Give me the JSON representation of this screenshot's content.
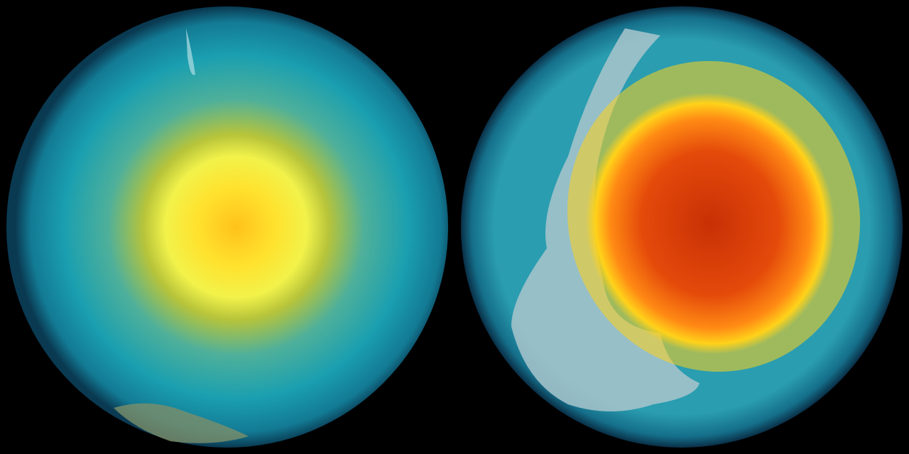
{
  "scene": {
    "background": "#000000",
    "globes": [
      {
        "view": "south-polar",
        "colors": {
          "outer": "#0f5f7a",
          "ocean": "#1a9fb0",
          "mid": "#8fbf3a",
          "core": "#ffe93a",
          "center": "#ffc21a"
        }
      },
      {
        "view": "tilted-polar",
        "colors": {
          "outer": "#0d4a63",
          "ocean": "#2a9db0",
          "ring": "#ffd21a",
          "core": "#ff7a14",
          "center": "#d83a08",
          "land": "#a9c6cc"
        }
      }
    ]
  }
}
